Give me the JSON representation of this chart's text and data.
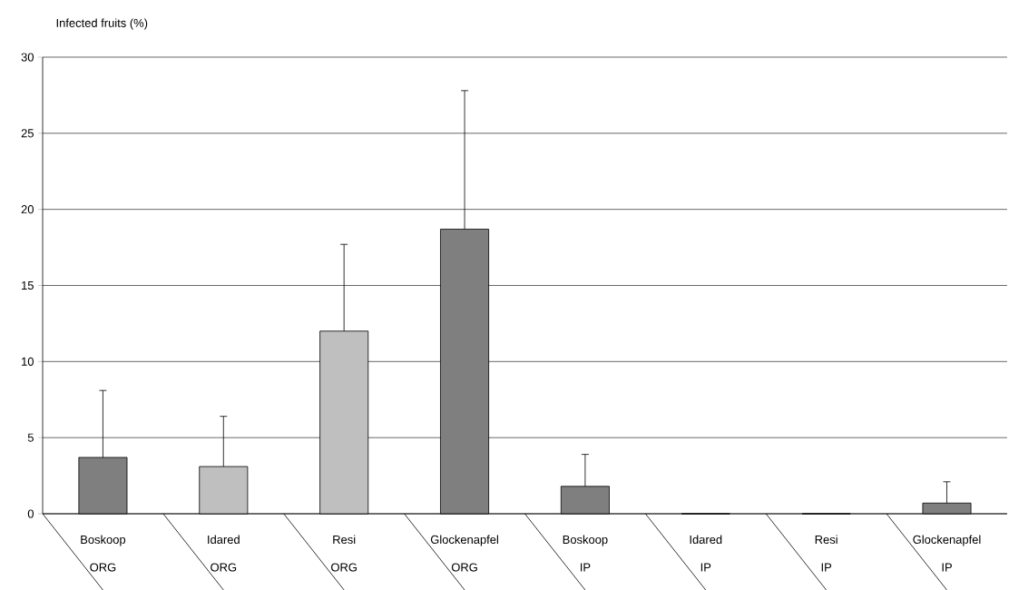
{
  "chart_data": {
    "type": "bar",
    "ylabel": "Infected fruits (%)",
    "categories": [
      "Boskoop",
      "Idared",
      "Resi",
      "Glockenapfel",
      "Boskoop",
      "Idared",
      "Resi",
      "Glockenapfel"
    ],
    "annotations": [
      "ORG",
      "ORG",
      "ORG",
      "ORG",
      "IP",
      "IP",
      "IP",
      "IP"
    ],
    "values": [
      3.7,
      3.1,
      12.0,
      18.7,
      1.8,
      0,
      0,
      0.7
    ],
    "errors": [
      [
        3.7,
        8.1
      ],
      [
        3.1,
        6.4
      ],
      [
        12.0,
        17.7
      ],
      [
        18.7,
        27.8
      ],
      [
        1.8,
        3.9
      ],
      null,
      null,
      [
        0.7,
        2.1
      ]
    ],
    "colors": [
      "#7f7f7f",
      "#bfbfbf",
      "#bfbfbf",
      "#7f7f7f",
      "#7f7f7f",
      "#bfbfbf",
      "#bfbfbf",
      "#7f7f7f"
    ],
    "ylim": [
      0,
      30
    ],
    "yticks": [
      0,
      5,
      10,
      15,
      20,
      25,
      30
    ],
    "grid": "y"
  }
}
